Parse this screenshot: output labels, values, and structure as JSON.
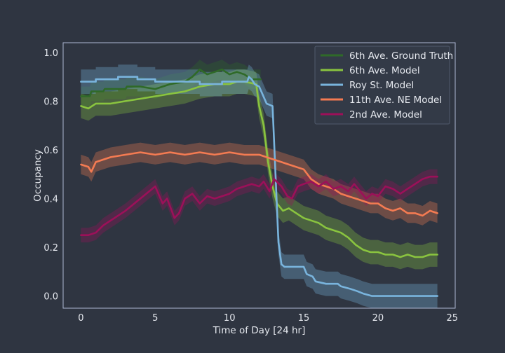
{
  "chart_data": {
    "type": "line",
    "xlabel": "Time of Day [24 hr]",
    "ylabel": "Occupancy",
    "xlim": [
      -1.2,
      25.2
    ],
    "ylim": [
      -0.05,
      1.04
    ],
    "xticks": [
      0,
      5,
      10,
      15,
      20,
      25
    ],
    "yticks": [
      0.0,
      0.2,
      0.4,
      0.6,
      0.8,
      1.0
    ],
    "ytick_labels": [
      "0.0",
      "0.2",
      "0.4",
      "0.6",
      "0.8",
      "1.0"
    ],
    "grid": false,
    "legend_position": "top-right",
    "colors": {
      "background": "#2f3541",
      "axes_frame": "#aeb8d4",
      "text": "#e6e9ef"
    },
    "series": [
      {
        "name": "6th Ave. Ground Truth",
        "color": "#2f6a28",
        "band": 0.04,
        "points": [
          [
            0,
            0.82
          ],
          [
            0.6,
            0.82
          ],
          [
            0.7,
            0.84
          ],
          [
            1.5,
            0.84
          ],
          [
            1.6,
            0.85
          ],
          [
            3.0,
            0.85
          ],
          [
            3.1,
            0.86
          ],
          [
            4.0,
            0.86
          ],
          [
            5,
            0.85
          ],
          [
            6,
            0.87
          ],
          [
            7,
            0.88
          ],
          [
            7.5,
            0.9
          ],
          [
            8,
            0.93
          ],
          [
            8.5,
            0.91
          ],
          [
            9,
            0.92
          ],
          [
            9.5,
            0.93
          ],
          [
            10,
            0.91
          ],
          [
            10.5,
            0.92
          ],
          [
            11,
            0.91
          ],
          [
            11.5,
            0.89
          ],
          [
            12.1,
            0.89
          ]
        ]
      },
      {
        "name": "6th Ave. Model",
        "color": "#8ac43f",
        "band": 0.05,
        "points": [
          [
            0,
            0.78
          ],
          [
            0.5,
            0.77
          ],
          [
            1,
            0.79
          ],
          [
            1.5,
            0.79
          ],
          [
            2,
            0.79
          ],
          [
            3,
            0.8
          ],
          [
            4,
            0.81
          ],
          [
            5,
            0.82
          ],
          [
            6,
            0.83
          ],
          [
            7,
            0.84
          ],
          [
            8,
            0.86
          ],
          [
            9,
            0.87
          ],
          [
            10,
            0.87
          ],
          [
            10.5,
            0.88
          ],
          [
            11,
            0.88
          ],
          [
            11.8,
            0.87
          ],
          [
            12.0,
            0.78
          ],
          [
            12.3,
            0.7
          ],
          [
            12.6,
            0.55
          ],
          [
            12.9,
            0.45
          ],
          [
            13.2,
            0.38
          ],
          [
            13.6,
            0.35
          ],
          [
            14.0,
            0.36
          ],
          [
            14.5,
            0.34
          ],
          [
            15,
            0.32
          ],
          [
            15.5,
            0.31
          ],
          [
            16,
            0.3
          ],
          [
            16.5,
            0.28
          ],
          [
            17,
            0.27
          ],
          [
            17.5,
            0.26
          ],
          [
            18,
            0.24
          ],
          [
            18.5,
            0.21
          ],
          [
            19,
            0.19
          ],
          [
            19.5,
            0.18
          ],
          [
            20,
            0.18
          ],
          [
            20.5,
            0.17
          ],
          [
            21,
            0.17
          ],
          [
            21.5,
            0.16
          ],
          [
            22,
            0.17
          ],
          [
            22.5,
            0.16
          ],
          [
            23,
            0.16
          ],
          [
            23.5,
            0.17
          ],
          [
            24,
            0.17
          ]
        ]
      },
      {
        "name": "Roy St. Model",
        "color": "#79b4dd",
        "band": 0.05,
        "points": [
          [
            0,
            0.88
          ],
          [
            1.0,
            0.88
          ],
          [
            1.0,
            0.89
          ],
          [
            2.5,
            0.89
          ],
          [
            2.5,
            0.9
          ],
          [
            3.8,
            0.9
          ],
          [
            3.8,
            0.89
          ],
          [
            5.0,
            0.89
          ],
          [
            5.0,
            0.88
          ],
          [
            8.0,
            0.88
          ],
          [
            8.0,
            0.87
          ],
          [
            9.5,
            0.87
          ],
          [
            9.5,
            0.88
          ],
          [
            11.2,
            0.88
          ],
          [
            11.3,
            0.9
          ],
          [
            11.5,
            0.89
          ],
          [
            11.7,
            0.87
          ],
          [
            12.0,
            0.86
          ],
          [
            12.5,
            0.79
          ],
          [
            12.9,
            0.78
          ],
          [
            13.1,
            0.5
          ],
          [
            13.3,
            0.22
          ],
          [
            13.5,
            0.13
          ],
          [
            13.7,
            0.12
          ],
          [
            15.0,
            0.12
          ],
          [
            15.2,
            0.09
          ],
          [
            15.6,
            0.08
          ],
          [
            15.8,
            0.06
          ],
          [
            16.5,
            0.05
          ],
          [
            17.3,
            0.05
          ],
          [
            17.5,
            0.04
          ],
          [
            18.1,
            0.03
          ],
          [
            18.6,
            0.02
          ],
          [
            19,
            0.01
          ],
          [
            19.6,
            0.0
          ],
          [
            24,
            0.0
          ]
        ]
      },
      {
        "name": "11th Ave. NE Model",
        "color": "#f47b52",
        "band": 0.04,
        "points": [
          [
            0,
            0.54
          ],
          [
            0.5,
            0.53
          ],
          [
            0.7,
            0.51
          ],
          [
            1,
            0.55
          ],
          [
            2,
            0.57
          ],
          [
            3,
            0.58
          ],
          [
            4,
            0.59
          ],
          [
            5,
            0.58
          ],
          [
            6,
            0.59
          ],
          [
            7,
            0.58
          ],
          [
            8,
            0.59
          ],
          [
            9,
            0.58
          ],
          [
            10,
            0.59
          ],
          [
            11,
            0.58
          ],
          [
            12,
            0.58
          ],
          [
            12.5,
            0.57
          ],
          [
            13,
            0.56
          ],
          [
            13.5,
            0.55
          ],
          [
            14,
            0.54
          ],
          [
            15,
            0.52
          ],
          [
            15.5,
            0.48
          ],
          [
            16,
            0.46
          ],
          [
            16.5,
            0.45
          ],
          [
            17,
            0.44
          ],
          [
            17.5,
            0.42
          ],
          [
            18,
            0.41
          ],
          [
            18.5,
            0.4
          ],
          [
            19,
            0.39
          ],
          [
            19.5,
            0.38
          ],
          [
            20,
            0.38
          ],
          [
            20.5,
            0.36
          ],
          [
            21,
            0.35
          ],
          [
            21.5,
            0.36
          ],
          [
            22,
            0.34
          ],
          [
            22.5,
            0.34
          ],
          [
            23,
            0.33
          ],
          [
            23.5,
            0.35
          ],
          [
            24,
            0.34
          ]
        ]
      },
      {
        "name": "2nd Ave. Model",
        "color": "#9c1059",
        "band": 0.03,
        "points": [
          [
            0,
            0.25
          ],
          [
            0.5,
            0.25
          ],
          [
            1,
            0.26
          ],
          [
            1.5,
            0.29
          ],
          [
            2,
            0.31
          ],
          [
            3,
            0.35
          ],
          [
            4,
            0.4
          ],
          [
            4.6,
            0.43
          ],
          [
            5,
            0.45
          ],
          [
            5.5,
            0.38
          ],
          [
            5.8,
            0.4
          ],
          [
            6.3,
            0.32
          ],
          [
            6.6,
            0.34
          ],
          [
            7,
            0.4
          ],
          [
            7.5,
            0.42
          ],
          [
            8,
            0.38
          ],
          [
            8.5,
            0.41
          ],
          [
            9,
            0.4
          ],
          [
            9.5,
            0.41
          ],
          [
            10,
            0.42
          ],
          [
            10.5,
            0.44
          ],
          [
            11,
            0.45
          ],
          [
            11.5,
            0.46
          ],
          [
            12,
            0.45
          ],
          [
            12.3,
            0.47
          ],
          [
            12.7,
            0.43
          ],
          [
            13,
            0.48
          ],
          [
            13.5,
            0.45
          ],
          [
            13.9,
            0.41
          ],
          [
            14.2,
            0.4
          ],
          [
            14.6,
            0.45
          ],
          [
            15,
            0.46
          ],
          [
            15.5,
            0.47
          ],
          [
            16,
            0.45
          ],
          [
            16.5,
            0.47
          ],
          [
            17,
            0.44
          ],
          [
            17.5,
            0.45
          ],
          [
            18,
            0.43
          ],
          [
            18.4,
            0.46
          ],
          [
            18.8,
            0.43
          ],
          [
            19.2,
            0.4
          ],
          [
            19.6,
            0.42
          ],
          [
            20,
            0.41
          ],
          [
            20.5,
            0.45
          ],
          [
            21,
            0.44
          ],
          [
            21.5,
            0.42
          ],
          [
            22,
            0.44
          ],
          [
            22.5,
            0.46
          ],
          [
            23,
            0.48
          ],
          [
            23.5,
            0.49
          ],
          [
            24,
            0.49
          ]
        ]
      }
    ]
  }
}
